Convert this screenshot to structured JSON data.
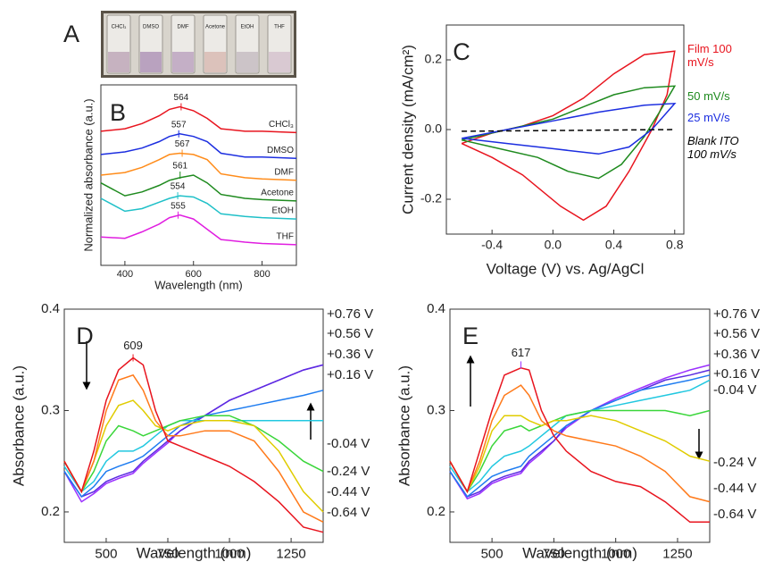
{
  "photo": {
    "panel": "A",
    "labels": [
      "CHCl₃",
      "DMSO",
      "DMF",
      "Acetone",
      "EtOH",
      "THF"
    ]
  },
  "chart_data": [
    {
      "type": "line",
      "panel": "B",
      "x_label": "Wavelength (nm)",
      "y_label": "Normalized absorbance (a.u.)",
      "xlim": [
        330,
        900
      ],
      "ylim": [
        0,
        7
      ],
      "xticks": [
        400,
        600,
        800
      ],
      "x": [
        330,
        400,
        450,
        500,
        530,
        560,
        600,
        640,
        680,
        750,
        800,
        900
      ],
      "series": [
        {
          "name": "CHCl₃",
          "color": "#e8141e",
          "peak": 564,
          "values": [
            5.2,
            5.3,
            5.5,
            5.8,
            6.05,
            6.15,
            6.0,
            5.7,
            5.3,
            5.2,
            5.2,
            5.15
          ]
        },
        {
          "name": "DMSO",
          "color": "#1c2ee0",
          "peak": 557,
          "values": [
            4.3,
            4.4,
            4.55,
            4.8,
            5.0,
            5.1,
            5.0,
            4.8,
            4.35,
            4.2,
            4.2,
            4.15
          ]
        },
        {
          "name": "DMF",
          "color": "#ff8c1a",
          "peak": 567,
          "values": [
            3.5,
            3.6,
            3.8,
            4.1,
            4.3,
            4.35,
            4.3,
            4.1,
            3.55,
            3.4,
            3.35,
            3.3
          ]
        },
        {
          "name": "Acetone",
          "color": "#1e8a1e",
          "peak": 561,
          "values": [
            3.2,
            2.7,
            2.85,
            3.1,
            3.3,
            3.4,
            3.5,
            3.2,
            2.75,
            2.6,
            2.55,
            2.5
          ]
        },
        {
          "name": "EtOH",
          "color": "#1fc0c8",
          "peak": 554,
          "values": [
            2.6,
            2.1,
            2.2,
            2.45,
            2.6,
            2.7,
            2.65,
            2.4,
            2.0,
            1.9,
            1.85,
            1.8
          ]
        },
        {
          "name": "THF",
          "color": "#e01ee0",
          "peak": 555,
          "values": [
            1.1,
            1.05,
            1.3,
            1.6,
            1.85,
            1.95,
            1.8,
            1.4,
            1.0,
            0.9,
            0.85,
            0.8
          ]
        }
      ]
    },
    {
      "type": "line",
      "panel": "C",
      "x_label": "Voltage (V) vs. Ag/AgCl",
      "y_label": "Current density (mA/cm²)",
      "xlim": [
        -0.7,
        0.86
      ],
      "ylim": [
        -0.3,
        0.3
      ],
      "xticks": [
        -0.4,
        {
          "value": 0,
          "label": "0.0"
        },
        0.4,
        0.8
      ],
      "yticks": [
        -0.2,
        {
          "value": 0,
          "label": "0.0"
        },
        0.2
      ],
      "series": [
        {
          "name": "Film 100 mV/s",
          "color": "#e8141e",
          "dash": false,
          "x": [
            -0.6,
            -0.4,
            -0.2,
            0,
            0.2,
            0.4,
            0.6,
            0.8,
            0.75,
            0.65,
            0.5,
            0.35,
            0.2,
            0.05,
            -0.2,
            -0.4,
            -0.6
          ],
          "values": [
            -0.04,
            -0.01,
            0.01,
            0.04,
            0.09,
            0.16,
            0.215,
            0.225,
            0.1,
            0.0,
            -0.12,
            -0.22,
            -0.26,
            -0.22,
            -0.13,
            -0.08,
            -0.04
          ]
        },
        {
          "name": "50 mV/s",
          "color": "#1e8a1e",
          "dash": false,
          "x": [
            -0.6,
            -0.4,
            -0.2,
            0,
            0.2,
            0.4,
            0.6,
            0.8,
            0.7,
            0.6,
            0.45,
            0.3,
            0.1,
            -0.1,
            -0.4,
            -0.6
          ],
          "values": [
            -0.03,
            -0.01,
            0.01,
            0.03,
            0.065,
            0.1,
            0.12,
            0.125,
            0.05,
            -0.02,
            -0.1,
            -0.14,
            -0.12,
            -0.08,
            -0.05,
            -0.03
          ]
        },
        {
          "name": "25 mV/s",
          "color": "#1c2ee0",
          "dash": false,
          "x": [
            -0.6,
            -0.3,
            0,
            0.3,
            0.6,
            0.8,
            0.65,
            0.5,
            0.3,
            0,
            -0.3,
            -0.6
          ],
          "values": [
            -0.025,
            0.0,
            0.025,
            0.05,
            0.07,
            0.075,
            0.0,
            -0.05,
            -0.07,
            -0.055,
            -0.04,
            -0.025
          ]
        },
        {
          "name": "Blank ITO 100 mV/s",
          "color": "#000000",
          "dash": true,
          "x": [
            -0.6,
            0.8
          ],
          "values": [
            -0.005,
            0.0
          ]
        }
      ]
    },
    {
      "type": "line",
      "panel": "D",
      "x_label": "Wavelength (nm)",
      "y_label": "Absorbance (a.u.)",
      "xlim": [
        330,
        1380
      ],
      "ylim": [
        0.17,
        0.4
      ],
      "xticks": [
        500,
        750,
        1000,
        1250
      ],
      "yticks": [
        0.2,
        0.3,
        0.4
      ],
      "annotation": 609,
      "x": [
        330,
        400,
        450,
        500,
        550,
        609,
        650,
        700,
        750,
        800,
        900,
        1000,
        1100,
        1200,
        1300,
        1380
      ],
      "series": [
        {
          "name": "+0.76 V",
          "color": "#9b30ff",
          "values": [
            0.24,
            0.21,
            0.218,
            0.228,
            0.233,
            0.238,
            0.248,
            0.258,
            0.268,
            0.28,
            0.295,
            0.31,
            0.32,
            0.33,
            0.34,
            0.345
          ]
        },
        {
          "name": "+0.56 V",
          "color": "#5a2be0",
          "values": [
            0.24,
            0.215,
            0.22,
            0.23,
            0.235,
            0.24,
            0.25,
            0.26,
            0.27,
            0.28,
            0.295,
            0.31,
            0.32,
            0.33,
            0.34,
            0.345
          ]
        },
        {
          "name": "+0.36 V",
          "color": "#1e7cf0",
          "values": [
            0.24,
            0.215,
            0.225,
            0.24,
            0.245,
            0.25,
            0.255,
            0.265,
            0.275,
            0.285,
            0.295,
            0.3,
            0.305,
            0.31,
            0.315,
            0.32
          ]
        },
        {
          "name": "+0.16 V",
          "color": "#22c8e0",
          "values": [
            0.245,
            0.22,
            0.23,
            0.25,
            0.26,
            0.26,
            0.265,
            0.275,
            0.285,
            0.29,
            0.29,
            0.29,
            0.29,
            0.29,
            0.29,
            0.29
          ]
        },
        {
          "name": "-0.04 V",
          "color": "#3ad63a",
          "values": [
            0.25,
            0.22,
            0.24,
            0.27,
            0.285,
            0.28,
            0.275,
            0.28,
            0.285,
            0.29,
            0.295,
            0.295,
            0.285,
            0.27,
            0.25,
            0.24
          ]
        },
        {
          "name": "-0.24 V",
          "color": "#e0cc00",
          "values": [
            0.25,
            0.22,
            0.25,
            0.285,
            0.305,
            0.31,
            0.3,
            0.285,
            0.28,
            0.285,
            0.29,
            0.29,
            0.285,
            0.26,
            0.22,
            0.2
          ]
        },
        {
          "name": "-0.44 V",
          "color": "#ff7a1a",
          "values": [
            0.25,
            0.22,
            0.25,
            0.3,
            0.33,
            0.335,
            0.32,
            0.29,
            0.275,
            0.275,
            0.28,
            0.28,
            0.27,
            0.24,
            0.2,
            0.19
          ]
        },
        {
          "name": "-0.64 V",
          "color": "#e8141e",
          "values": [
            0.25,
            0.22,
            0.26,
            0.31,
            0.34,
            0.352,
            0.345,
            0.3,
            0.27,
            0.265,
            0.255,
            0.245,
            0.23,
            0.21,
            0.185,
            0.18
          ]
        }
      ]
    },
    {
      "type": "line",
      "panel": "E",
      "x_label": "Wavelength (nm)",
      "y_label": "Absorbance (a.u.)",
      "xlim": [
        330,
        1380
      ],
      "ylim": [
        0.17,
        0.4
      ],
      "xticks": [
        500,
        750,
        1000,
        1250
      ],
      "yticks": [
        0.2,
        0.3,
        0.4
      ],
      "annotation": 617,
      "x": [
        330,
        400,
        450,
        500,
        550,
        617,
        650,
        700,
        750,
        800,
        900,
        1000,
        1100,
        1200,
        1300,
        1380
      ],
      "series": [
        {
          "name": "+0.76 V",
          "color": "#9b30ff",
          "values": [
            0.24,
            0.213,
            0.218,
            0.228,
            0.233,
            0.238,
            0.248,
            0.258,
            0.27,
            0.283,
            0.3,
            0.312,
            0.322,
            0.332,
            0.34,
            0.345
          ]
        },
        {
          "name": "+0.56 V",
          "color": "#5a2be0",
          "values": [
            0.24,
            0.215,
            0.22,
            0.23,
            0.235,
            0.24,
            0.25,
            0.26,
            0.27,
            0.285,
            0.3,
            0.31,
            0.32,
            0.33,
            0.335,
            0.34
          ]
        },
        {
          "name": "+0.36 V",
          "color": "#1e7cf0",
          "values": [
            0.24,
            0.215,
            0.225,
            0.235,
            0.24,
            0.245,
            0.255,
            0.265,
            0.275,
            0.285,
            0.3,
            0.31,
            0.32,
            0.325,
            0.33,
            0.335
          ]
        },
        {
          "name": "+0.16 V",
          "color": "#22c8e0",
          "values": [
            0.245,
            0.22,
            0.23,
            0.245,
            0.255,
            0.26,
            0.265,
            0.275,
            0.285,
            0.295,
            0.3,
            0.305,
            0.31,
            0.315,
            0.32,
            0.33
          ]
        },
        {
          "name": "-0.04 V",
          "color": "#3ad63a",
          "values": [
            0.25,
            0.22,
            0.24,
            0.265,
            0.28,
            0.285,
            0.28,
            0.285,
            0.29,
            0.295,
            0.3,
            0.3,
            0.3,
            0.3,
            0.295,
            0.3
          ]
        },
        {
          "name": "-0.24 V",
          "color": "#e0cc00",
          "values": [
            0.25,
            0.22,
            0.245,
            0.28,
            0.295,
            0.295,
            0.29,
            0.285,
            0.29,
            0.29,
            0.295,
            0.29,
            0.28,
            0.27,
            0.255,
            0.25
          ]
        },
        {
          "name": "-0.44 V",
          "color": "#ff7a1a",
          "values": [
            0.25,
            0.22,
            0.25,
            0.29,
            0.315,
            0.325,
            0.315,
            0.29,
            0.28,
            0.275,
            0.27,
            0.265,
            0.255,
            0.24,
            0.215,
            0.21
          ]
        },
        {
          "name": "-0.64 V",
          "color": "#e8141e",
          "values": [
            0.25,
            0.22,
            0.26,
            0.3,
            0.335,
            0.342,
            0.34,
            0.3,
            0.275,
            0.26,
            0.24,
            0.23,
            0.225,
            0.21,
            0.19,
            0.19
          ]
        }
      ]
    }
  ]
}
